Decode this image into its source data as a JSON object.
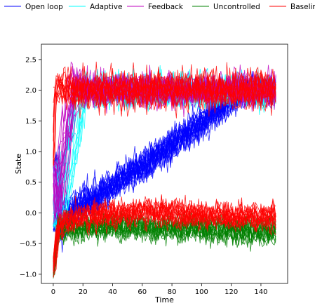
{
  "chart_data": {
    "type": "line",
    "title": "",
    "xlabel": "Time",
    "ylabel": "State",
    "xlim": [
      -8,
      158
    ],
    "ylim": [
      -1.15,
      2.75
    ],
    "xticks": [
      0,
      20,
      40,
      60,
      80,
      100,
      120,
      140
    ],
    "xtick_labels": [
      "0",
      "20",
      "40",
      "60",
      "80",
      "100",
      "120",
      "140"
    ],
    "yticks": [
      -1.0,
      -0.5,
      0.0,
      0.5,
      1.0,
      1.5,
      2.0,
      2.5
    ],
    "ytick_labels": [
      "−1.0",
      "−0.5",
      "0.0",
      "0.5",
      "1.0",
      "1.5",
      "2.0",
      "2.5"
    ],
    "grid": false,
    "legend_position": "top (above plot, single row)",
    "legend": [
      {
        "name": "Open loop",
        "color": "#0000ff"
      },
      {
        "name": "Adaptive",
        "color": "#00ffff"
      },
      {
        "name": "Feedback",
        "color": "#bf00bf"
      },
      {
        "name": "Uncontrolled",
        "color": "#008000"
      },
      {
        "name": "Baseline",
        "color": "#ff0000"
      }
    ],
    "series": [
      {
        "name": "Open loop",
        "color": "#0000ff",
        "description_points": {
          "x": [
            0,
            3,
            10,
            40,
            80,
            120,
            130,
            150
          ],
          "y": [
            0.8,
            -0.3,
            0.0,
            0.45,
            1.1,
            1.85,
            2.0,
            2.0
          ]
        },
        "noise": 0.18,
        "trajectories": 22
      },
      {
        "name": "Adaptive",
        "color": "#00ffff",
        "description_points": {
          "x": [
            0,
            3,
            10,
            20,
            23,
            150
          ],
          "y": [
            0.8,
            -0.3,
            0.8,
            2.1,
            2.0,
            2.0
          ]
        },
        "noise": 0.18,
        "trajectories": 18
      },
      {
        "name": "Feedback",
        "color": "#bf00bf",
        "description_points": {
          "x": [
            0,
            2,
            8,
            15,
            18,
            150
          ],
          "y": [
            0.8,
            -0.2,
            1.2,
            2.2,
            2.0,
            2.0
          ]
        },
        "noise": 0.18,
        "trajectories": 18
      },
      {
        "name": "Uncontrolled",
        "color": "#008000",
        "description_points": {
          "x": [
            0,
            3,
            10,
            50,
            150
          ],
          "y": [
            -1.0,
            -0.3,
            -0.25,
            -0.2,
            -0.3
          ]
        },
        "noise": 0.15,
        "trajectories": 15
      },
      {
        "name": "Baseline",
        "color": "#ff0000",
        "description_points": {
          "x": [
            0,
            3,
            10,
            60,
            150
          ],
          "y": [
            -1.0,
            -0.3,
            -0.1,
            0.0,
            -0.1
          ]
        },
        "noise": 0.15,
        "trajectories": 15
      },
      {
        "name": "Baseline",
        "color": "#ff0000",
        "description_points": {
          "x": [
            0,
            1,
            3,
            10,
            150
          ],
          "y": [
            0.8,
            2.0,
            2.0,
            2.0,
            2.0
          ]
        },
        "noise": 0.22,
        "trajectories": 12
      }
    ]
  }
}
